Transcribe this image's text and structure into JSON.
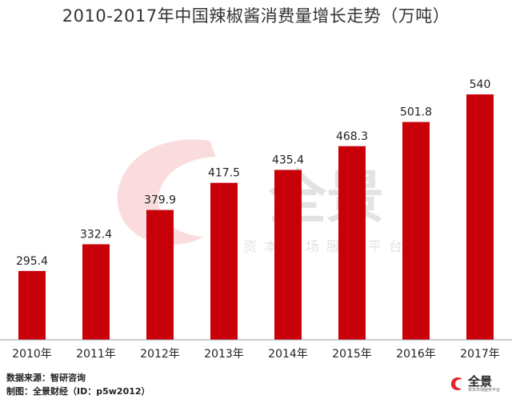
{
  "chart_data": {
    "type": "bar",
    "title": "2010-2017年中国辣椒酱消费量增长走势（万吨）",
    "categories": [
      "2010年",
      "2011年",
      "2012年",
      "2013年",
      "2014年",
      "2015年",
      "2016年",
      "2017年"
    ],
    "values": [
      295.4,
      332.4,
      379.9,
      417.5,
      435.4,
      468.3,
      501.8,
      540
    ],
    "value_labels": [
      "295.4",
      "332.4",
      "379.9",
      "417.5",
      "435.4",
      "468.3",
      "501.8",
      "540"
    ],
    "xlabel": "",
    "ylabel": "",
    "ylim": [
      200,
      560
    ],
    "grid": false,
    "bar_color": "#c8000a"
  },
  "watermark": {
    "brand": "全景",
    "tagline": "资本市场服务平台"
  },
  "footer": {
    "source": "数据来源：智研咨询",
    "credit": "制图：全景财经（ID：p5w2012）"
  },
  "logo": {
    "brand": "全景",
    "sub": "资本市场服务平台",
    "color": "#e0262f"
  }
}
